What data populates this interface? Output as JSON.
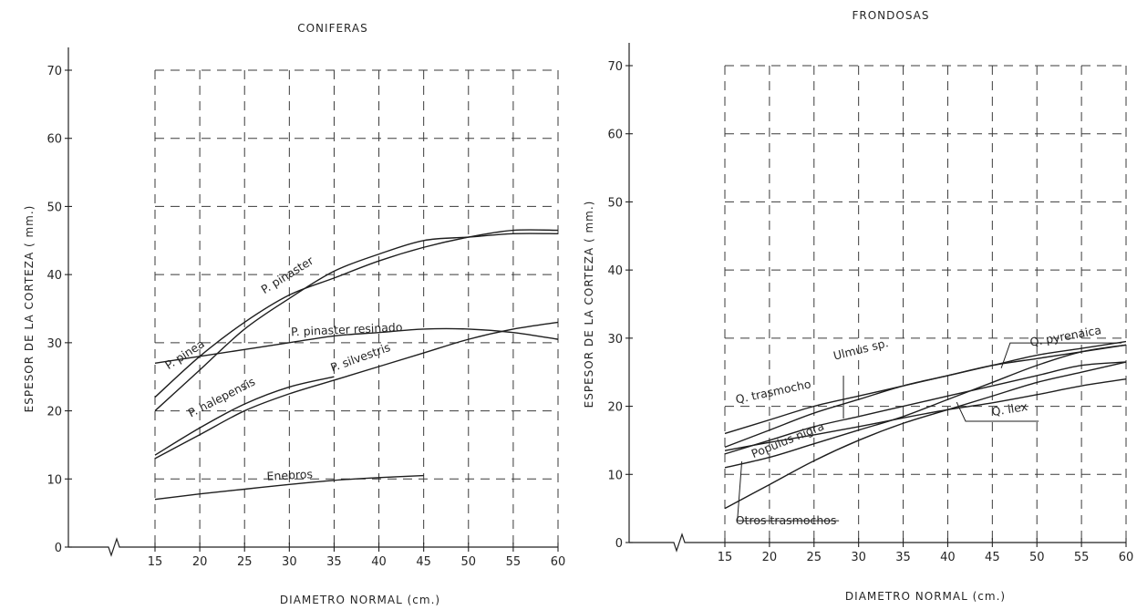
{
  "chart_data": [
    {
      "type": "line",
      "title": "CONIFERAS",
      "xlabel": "DIAMETRO NORMAL (cm.)",
      "ylabel": "ESPESOR DE LA CORTEZA ( mm.)",
      "xlim": [
        15,
        60
      ],
      "ylim": [
        0,
        70
      ],
      "x_ticks": [
        "15",
        "20",
        "25",
        "30",
        "35",
        "40",
        "45",
        "50",
        "55",
        "60"
      ],
      "y_ticks": [
        "0",
        "10",
        "20",
        "30",
        "40",
        "50",
        "60",
        "70"
      ],
      "grid": true,
      "series": [
        {
          "name": "P. pinaster",
          "x": [
            15,
            20,
            25,
            30,
            35,
            40,
            45,
            50,
            55,
            60
          ],
          "y": [
            20,
            26,
            32,
            36.5,
            40.5,
            43,
            45,
            45.5,
            46,
            46
          ]
        },
        {
          "name": "P. pinea",
          "x": [
            15,
            20,
            25,
            30,
            35,
            40,
            45,
            50,
            55,
            60
          ],
          "y": [
            22,
            28,
            33,
            37,
            39.5,
            42,
            44,
            45.5,
            46.5,
            46.5
          ]
        },
        {
          "name": "P. pinaster resinado",
          "x": [
            15,
            20,
            25,
            30,
            35,
            40,
            45,
            50,
            55,
            60
          ],
          "y": [
            27,
            28,
            29,
            30,
            31,
            31.5,
            32,
            32,
            31.5,
            30.5
          ]
        },
        {
          "name": "P. halepensis",
          "x": [
            15,
            20,
            25,
            30,
            35
          ],
          "y": [
            13.5,
            17.5,
            21,
            23.5,
            25
          ]
        },
        {
          "name": "P. silvestris",
          "x": [
            15,
            20,
            25,
            30,
            35,
            40,
            45,
            50,
            55,
            60
          ],
          "y": [
            13,
            16.5,
            20,
            22.5,
            24.5,
            26.5,
            28.5,
            30.5,
            32,
            33
          ]
        },
        {
          "name": "Enebros",
          "x": [
            15,
            20,
            25,
            30,
            35,
            40,
            45
          ],
          "y": [
            7,
            7.8,
            8.5,
            9.2,
            9.8,
            10.2,
            10.5
          ]
        }
      ]
    },
    {
      "type": "line",
      "title": "FRONDOSAS",
      "xlabel": "DIAMETRO NORMAL (cm.)",
      "ylabel": "ESPESOR DE LA CORTEZA ( mm.)",
      "xlim": [
        15,
        60
      ],
      "ylim": [
        0,
        70
      ],
      "x_ticks": [
        "15",
        "20",
        "25",
        "30",
        "35",
        "40",
        "45",
        "50",
        "55",
        "60"
      ],
      "y_ticks": [
        "0",
        "10",
        "20",
        "30",
        "40",
        "50",
        "60",
        "70"
      ],
      "grid": true,
      "series": [
        {
          "name": "Q. trasmocho",
          "x": [
            15,
            20,
            25,
            30,
            35,
            40,
            45,
            50,
            55,
            60
          ],
          "y": [
            16,
            18,
            20,
            21.5,
            23,
            24.5,
            26,
            27,
            28,
            29
          ]
        },
        {
          "name": "Ulmus sp.",
          "x": [
            15,
            20,
            25,
            30,
            35,
            40,
            45,
            50,
            55,
            60
          ],
          "y": [
            14,
            16.5,
            19,
            21,
            23,
            24.5,
            26,
            27.5,
            28.5,
            29.5
          ]
        },
        {
          "name": "Q. pyrenaica",
          "x": [
            15,
            20,
            25,
            30,
            35,
            40,
            45,
            50,
            55,
            60
          ],
          "y": [
            13,
            15,
            17,
            18.5,
            20,
            21.5,
            23,
            24.5,
            26,
            26.5
          ]
        },
        {
          "name": "Q. ilex",
          "x": [
            15,
            20,
            25,
            30,
            35,
            40,
            45,
            50,
            55,
            60
          ],
          "y": [
            13.5,
            14.7,
            15.8,
            17,
            18.3,
            19.5,
            20.5,
            21.7,
            23,
            24
          ]
        },
        {
          "name": "Populus nigra",
          "x": [
            15,
            20,
            25,
            30,
            35,
            40,
            45,
            50,
            55,
            60
          ],
          "y": [
            11,
            12.5,
            14.5,
            16.5,
            18.5,
            21,
            23.5,
            26,
            28,
            29
          ]
        },
        {
          "name": "Otros trasmochos",
          "x": [
            15,
            20,
            25,
            30,
            35,
            40,
            45,
            50,
            55,
            60
          ],
          "y": [
            5,
            8.5,
            12,
            15,
            17.5,
            19.5,
            21.5,
            23.5,
            25,
            26.5
          ]
        }
      ]
    }
  ]
}
